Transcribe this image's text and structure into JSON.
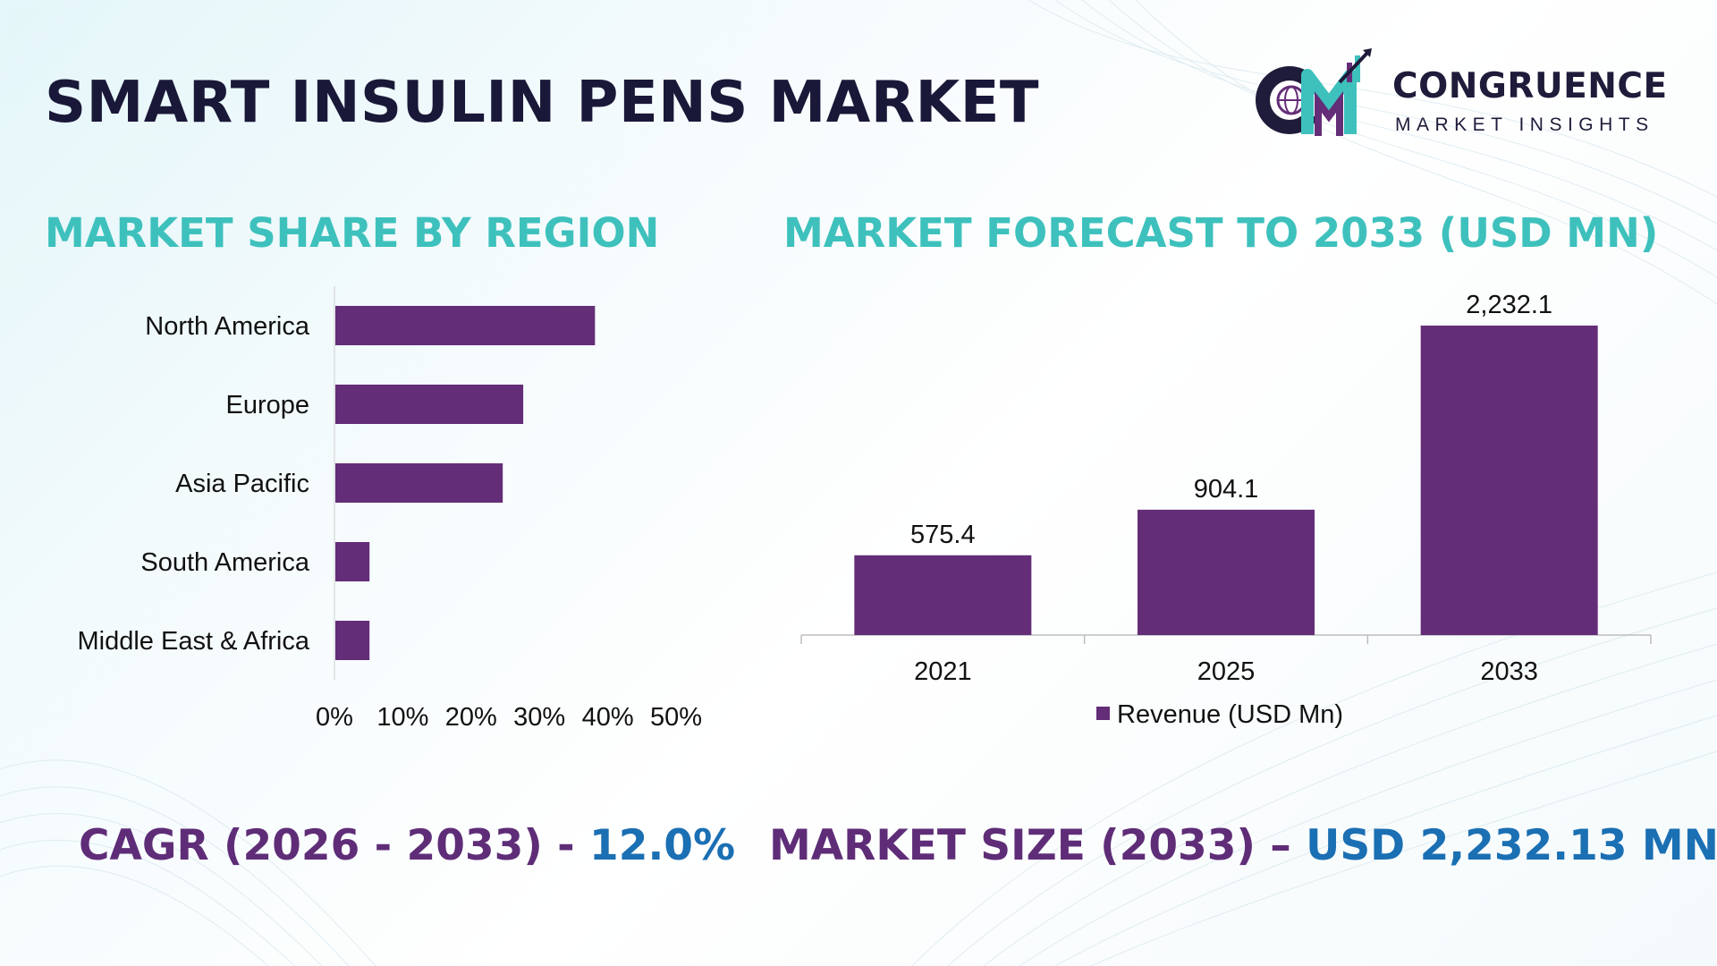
{
  "title": "SMART INSULIN PENS MARKET",
  "logo": {
    "line1": "CONGRUENCE",
    "line2": "MARKET INSIGHTS"
  },
  "region_section_title": "MARKET SHARE BY REGION",
  "forecast_section_title": "MARKET FORECAST TO 2033 (USD MN)",
  "footer": {
    "cagr_label": "CAGR (2026 - 2033) - ",
    "cagr_value": "12.0%",
    "size_label": "MARKET SIZE (2033) – ",
    "size_value": "USD 2,232.13 MN"
  },
  "colors": {
    "bar": "#642d78",
    "accent": "#3ec1bd",
    "dark": "#1a1838",
    "blue": "#1b6fb3"
  },
  "chart_data": [
    {
      "type": "bar",
      "orientation": "horizontal",
      "categories": [
        "North America",
        "Europe",
        "Asia Pacific",
        "South America",
        "Middle East & Africa"
      ],
      "values": [
        38,
        27.5,
        24.5,
        5,
        5
      ],
      "xlim": [
        0,
        50
      ],
      "xticks": [
        "0%",
        "10%",
        "20%",
        "30%",
        "40%",
        "50%"
      ],
      "grid": false,
      "legend": false
    },
    {
      "type": "bar",
      "categories": [
        "2021",
        "2025",
        "2033"
      ],
      "series": [
        {
          "name": "Revenue (USD Mn)",
          "values": [
            575.4,
            904.1,
            2232.1
          ]
        }
      ],
      "data_labels": [
        "575.4",
        "904.1",
        "2,232.1"
      ],
      "ylim": [
        0,
        2232.1
      ],
      "grid": false,
      "legend": "bottom"
    }
  ]
}
